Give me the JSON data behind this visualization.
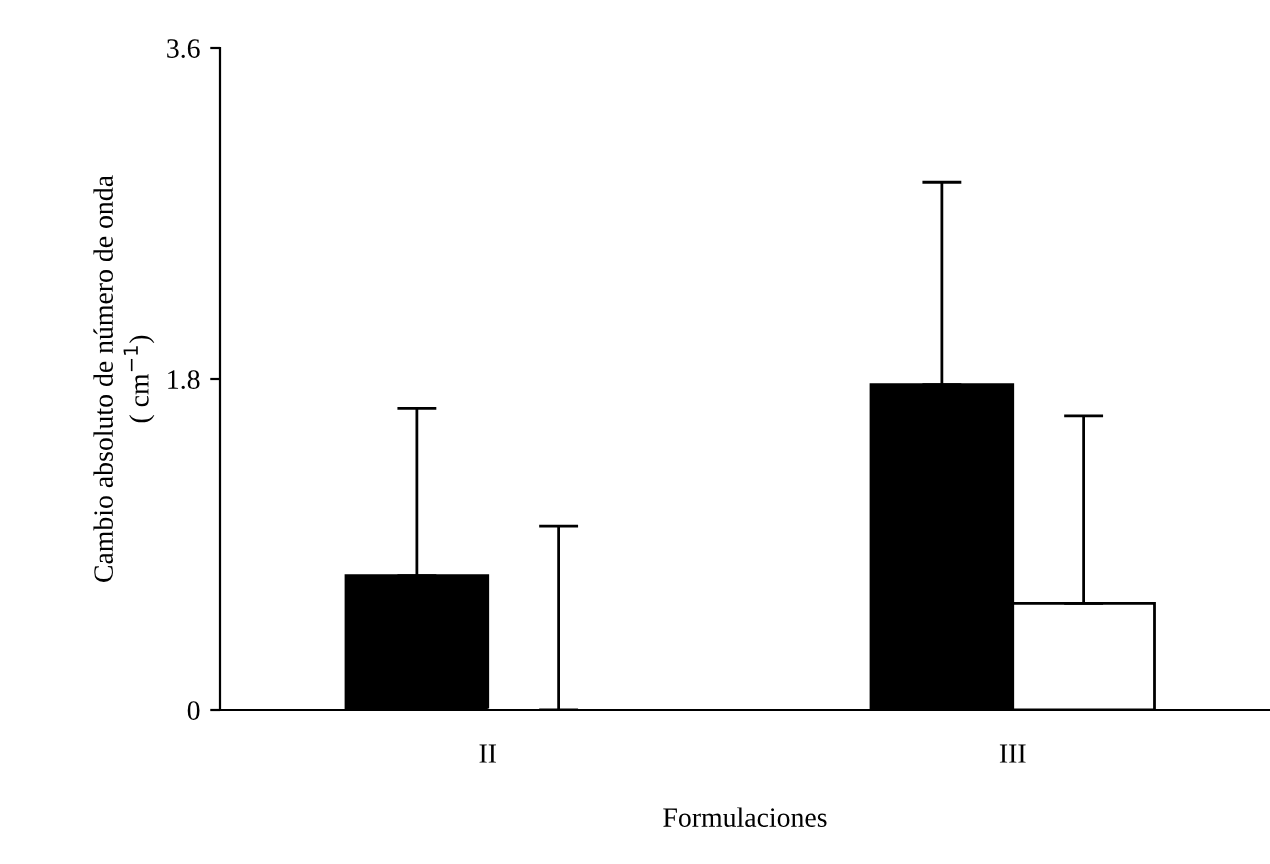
{
  "chart_data": {
    "type": "bar",
    "xlabel": "Formulaciones",
    "ylabel": "Cambio absoluto de número de onda\n( cm$^{−1}$)",
    "categories": [
      "II",
      "III"
    ],
    "series": [
      {
        "color": "#000000",
        "values": [
          0.73,
          1.77
        ],
        "errors": [
          [
            0.73,
            1.64
          ],
          [
            1.77,
            2.87
          ]
        ]
      },
      {
        "color": "#ffffff",
        "values": [
          0,
          0.58
        ],
        "errors": [
          [
            0,
            1.0
          ],
          [
            0.58,
            1.6
          ]
        ]
      }
    ],
    "ylim": [
      0,
      3.6
    ],
    "yticks": [
      0,
      1.8,
      3.6
    ],
    "grid": false,
    "legend": false
  }
}
